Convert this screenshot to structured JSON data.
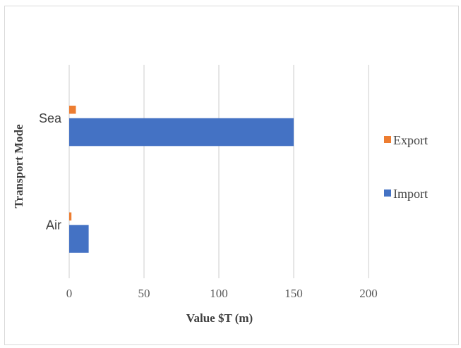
{
  "chart_data": {
    "type": "bar",
    "orientation": "horizontal",
    "title": "",
    "xlabel": "Value $T (m)",
    "ylabel": "Transport Mode",
    "categories": [
      "Air",
      "Sea"
    ],
    "series": [
      {
        "name": "Import",
        "values": [
          13,
          150
        ],
        "color": "#4472c4"
      },
      {
        "name": "Export",
        "values": [
          1.5,
          4.5
        ],
        "color": "#ed7d31"
      }
    ],
    "xlim": [
      0,
      200
    ],
    "xticks": [
      0,
      50,
      100,
      150,
      200
    ],
    "grid": "vertical",
    "legend": "right"
  }
}
